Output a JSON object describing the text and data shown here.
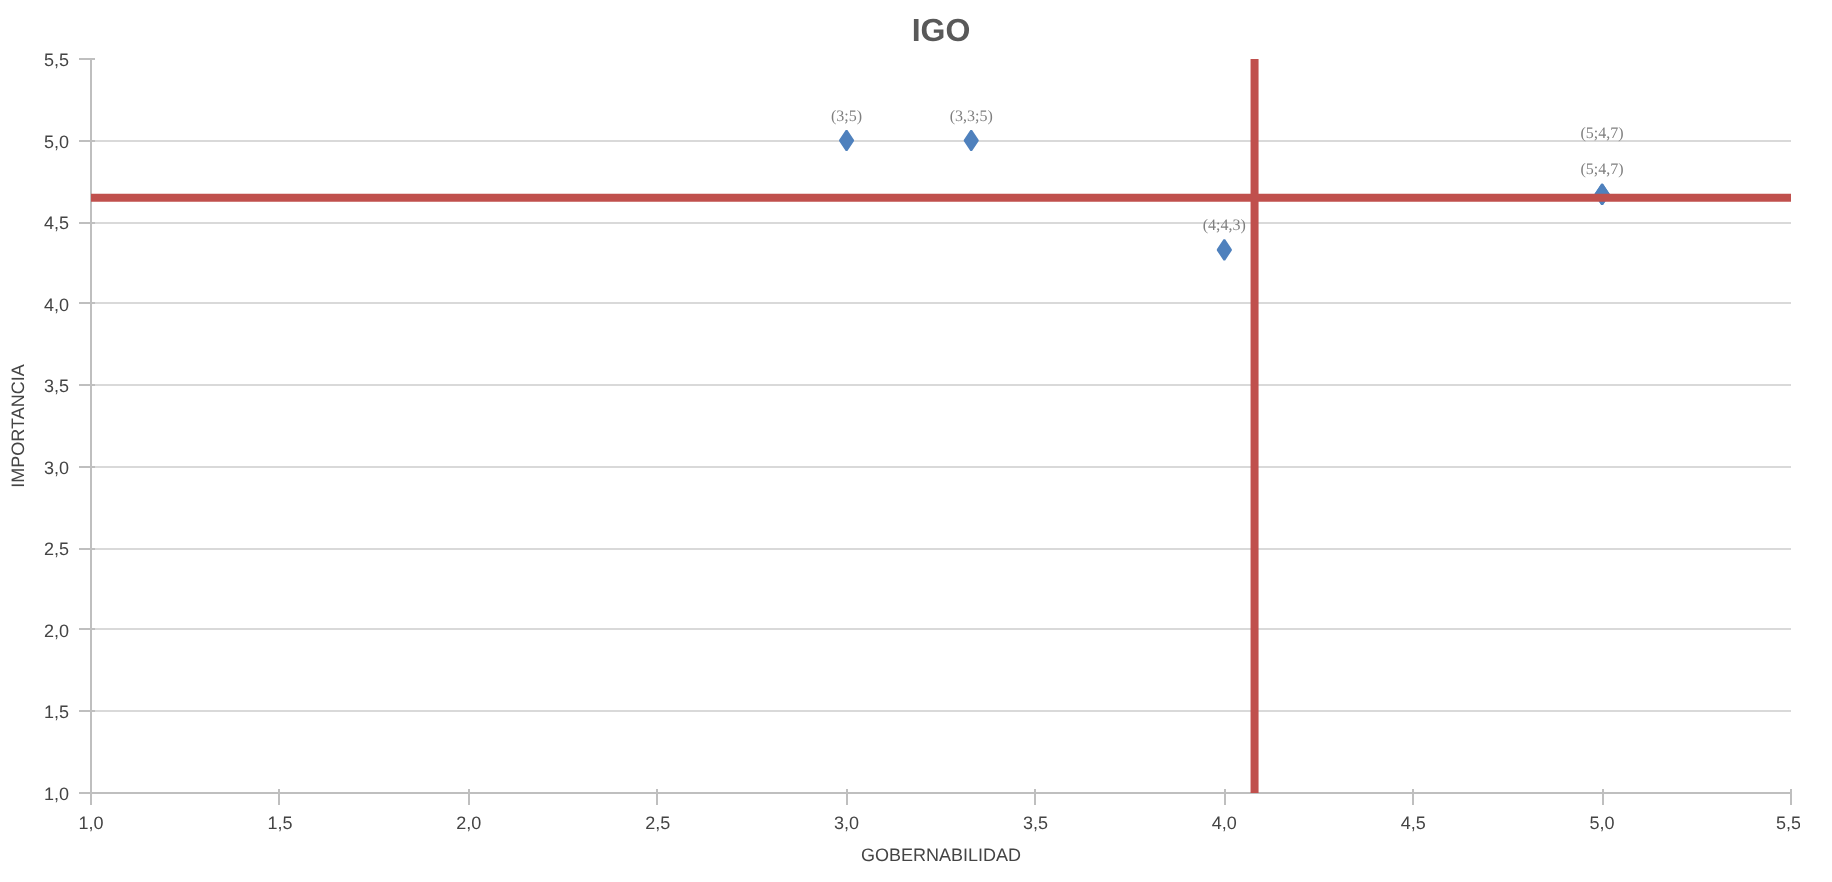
{
  "chart_data": {
    "type": "scatter",
    "title": "IGO",
    "xlabel": "GOBERNABILIDAD",
    "ylabel": "IMPORTANCIA",
    "x": [
      3,
      3.33,
      4,
      5,
      5
    ],
    "values": [
      5,
      5,
      4.33,
      4.67,
      4.67
    ],
    "value_labels": [
      "(3;5)",
      "(3,3;5)",
      "(4;4,3)",
      "(5;4,7)",
      "(5;4,7)"
    ],
    "color": "#4f81bd",
    "marker": "diamond",
    "grid": "y",
    "xlim": [
      1,
      5.5
    ],
    "ylim": [
      1,
      5.5
    ],
    "xticks": [
      {
        "value": 1,
        "label": "1,0"
      },
      {
        "value": 1.5,
        "label": "1,5"
      },
      {
        "value": 2,
        "label": "2,0"
      },
      {
        "value": 2.5,
        "label": "2,5"
      },
      {
        "value": 3,
        "label": "3,0"
      },
      {
        "value": 3.5,
        "label": "3,5"
      },
      {
        "value": 4,
        "label": "4,0"
      },
      {
        "value": 4.5,
        "label": "4,5"
      },
      {
        "value": 5,
        "label": "5,0"
      },
      {
        "value": 5.5,
        "label": "5,5"
      }
    ],
    "yticks": [
      {
        "value": 1,
        "label": "1,0"
      },
      {
        "value": 1.5,
        "label": "1,5"
      },
      {
        "value": 2,
        "label": "2,0"
      },
      {
        "value": 2.5,
        "label": "2,5"
      },
      {
        "value": 3,
        "label": "3,0"
      },
      {
        "value": 3.5,
        "label": "3,5"
      },
      {
        "value": 4,
        "label": "4,0"
      },
      {
        "value": 4.5,
        "label": "4,5"
      },
      {
        "value": 5,
        "label": "5,0"
      },
      {
        "value": 5.5,
        "label": "5,5"
      }
    ],
    "ref_lines": [
      {
        "axis": "x",
        "value": 4.08,
        "color": "#c0504d"
      },
      {
        "axis": "y",
        "value": 4.65,
        "color": "#c0504d"
      }
    ]
  }
}
